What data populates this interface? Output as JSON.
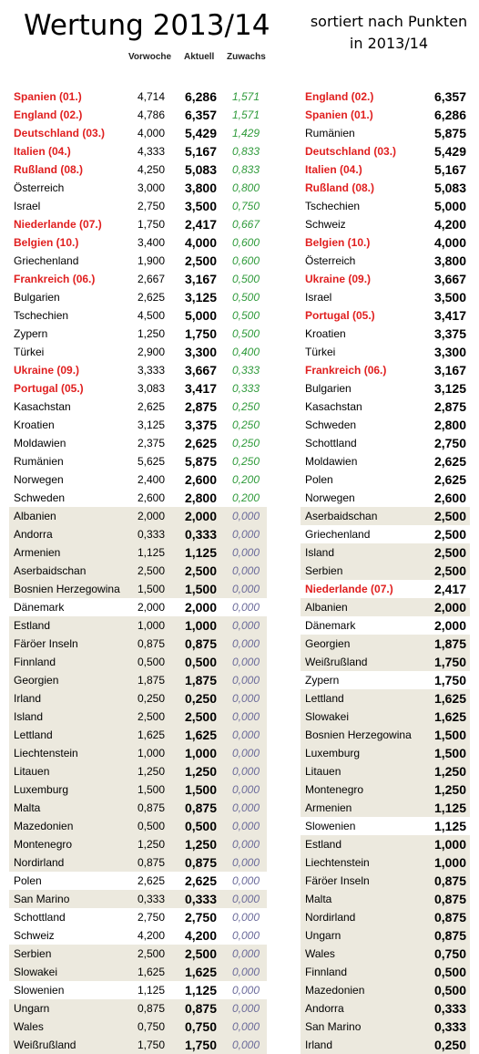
{
  "title": "Wertung 2013/14",
  "subtitle": "sortiert nach Punkten in 2013/14",
  "headers": {
    "prev": "Vorwoche",
    "curr": "Aktuell",
    "grow": "Zuwachs"
  },
  "left_rows": [
    {
      "name": "Spanien (01.)",
      "prev": "4,714",
      "curr": "6,286",
      "grow": "1,571",
      "red": true,
      "shade": false
    },
    {
      "name": "England (02.)",
      "prev": "4,786",
      "curr": "6,357",
      "grow": "1,571",
      "red": true,
      "shade": false
    },
    {
      "name": "Deutschland (03.)",
      "prev": "4,000",
      "curr": "5,429",
      "grow": "1,429",
      "red": true,
      "shade": false
    },
    {
      "name": "Italien (04.)",
      "prev": "4,333",
      "curr": "5,167",
      "grow": "0,833",
      "red": true,
      "shade": false
    },
    {
      "name": "Rußland (08.)",
      "prev": "4,250",
      "curr": "5,083",
      "grow": "0,833",
      "red": true,
      "shade": false
    },
    {
      "name": "Österreich",
      "prev": "3,000",
      "curr": "3,800",
      "grow": "0,800",
      "red": false,
      "shade": false
    },
    {
      "name": "Israel",
      "prev": "2,750",
      "curr": "3,500",
      "grow": "0,750",
      "red": false,
      "shade": false
    },
    {
      "name": "Niederlande (07.)",
      "prev": "1,750",
      "curr": "2,417",
      "grow": "0,667",
      "red": true,
      "shade": false
    },
    {
      "name": "Belgien (10.)",
      "prev": "3,400",
      "curr": "4,000",
      "grow": "0,600",
      "red": true,
      "shade": false
    },
    {
      "name": "Griechenland",
      "prev": "1,900",
      "curr": "2,500",
      "grow": "0,600",
      "red": false,
      "shade": false
    },
    {
      "name": "Frankreich (06.)",
      "prev": "2,667",
      "curr": "3,167",
      "grow": "0,500",
      "red": true,
      "shade": false
    },
    {
      "name": "Bulgarien",
      "prev": "2,625",
      "curr": "3,125",
      "grow": "0,500",
      "red": false,
      "shade": false
    },
    {
      "name": "Tschechien",
      "prev": "4,500",
      "curr": "5,000",
      "grow": "0,500",
      "red": false,
      "shade": false
    },
    {
      "name": "Zypern",
      "prev": "1,250",
      "curr": "1,750",
      "grow": "0,500",
      "red": false,
      "shade": false
    },
    {
      "name": "Türkei",
      "prev": "2,900",
      "curr": "3,300",
      "grow": "0,400",
      "red": false,
      "shade": false
    },
    {
      "name": "Ukraine (09.)",
      "prev": "3,333",
      "curr": "3,667",
      "grow": "0,333",
      "red": true,
      "shade": false
    },
    {
      "name": "Portugal (05.)",
      "prev": "3,083",
      "curr": "3,417",
      "grow": "0,333",
      "red": true,
      "shade": false
    },
    {
      "name": "Kasachstan",
      "prev": "2,625",
      "curr": "2,875",
      "grow": "0,250",
      "red": false,
      "shade": false
    },
    {
      "name": "Kroatien",
      "prev": "3,125",
      "curr": "3,375",
      "grow": "0,250",
      "red": false,
      "shade": false
    },
    {
      "name": "Moldawien",
      "prev": "2,375",
      "curr": "2,625",
      "grow": "0,250",
      "red": false,
      "shade": false
    },
    {
      "name": "Rumänien",
      "prev": "5,625",
      "curr": "5,875",
      "grow": "0,250",
      "red": false,
      "shade": false
    },
    {
      "name": "Norwegen",
      "prev": "2,400",
      "curr": "2,600",
      "grow": "0,200",
      "red": false,
      "shade": false
    },
    {
      "name": "Schweden",
      "prev": "2,600",
      "curr": "2,800",
      "grow": "0,200",
      "red": false,
      "shade": false
    },
    {
      "name": "Albanien",
      "prev": "2,000",
      "curr": "2,000",
      "grow": "0,000",
      "red": false,
      "shade": true
    },
    {
      "name": "Andorra",
      "prev": "0,333",
      "curr": "0,333",
      "grow": "0,000",
      "red": false,
      "shade": true
    },
    {
      "name": "Armenien",
      "prev": "1,125",
      "curr": "1,125",
      "grow": "0,000",
      "red": false,
      "shade": true
    },
    {
      "name": "Aserbaidschan",
      "prev": "2,500",
      "curr": "2,500",
      "grow": "0,000",
      "red": false,
      "shade": true
    },
    {
      "name": "Bosnien Herzegowina",
      "prev": "1,500",
      "curr": "1,500",
      "grow": "0,000",
      "red": false,
      "shade": true
    },
    {
      "name": "Dänemark",
      "prev": "2,000",
      "curr": "2,000",
      "grow": "0,000",
      "red": false,
      "shade": false
    },
    {
      "name": "Estland",
      "prev": "1,000",
      "curr": "1,000",
      "grow": "0,000",
      "red": false,
      "shade": true
    },
    {
      "name": "Färöer Inseln",
      "prev": "0,875",
      "curr": "0,875",
      "grow": "0,000",
      "red": false,
      "shade": true
    },
    {
      "name": "Finnland",
      "prev": "0,500",
      "curr": "0,500",
      "grow": "0,000",
      "red": false,
      "shade": true
    },
    {
      "name": "Georgien",
      "prev": "1,875",
      "curr": "1,875",
      "grow": "0,000",
      "red": false,
      "shade": true
    },
    {
      "name": "Irland",
      "prev": "0,250",
      "curr": "0,250",
      "grow": "0,000",
      "red": false,
      "shade": true
    },
    {
      "name": "Island",
      "prev": "2,500",
      "curr": "2,500",
      "grow": "0,000",
      "red": false,
      "shade": true
    },
    {
      "name": "Lettland",
      "prev": "1,625",
      "curr": "1,625",
      "grow": "0,000",
      "red": false,
      "shade": true
    },
    {
      "name": "Liechtenstein",
      "prev": "1,000",
      "curr": "1,000",
      "grow": "0,000",
      "red": false,
      "shade": true
    },
    {
      "name": "Litauen",
      "prev": "1,250",
      "curr": "1,250",
      "grow": "0,000",
      "red": false,
      "shade": true
    },
    {
      "name": "Luxemburg",
      "prev": "1,500",
      "curr": "1,500",
      "grow": "0,000",
      "red": false,
      "shade": true
    },
    {
      "name": "Malta",
      "prev": "0,875",
      "curr": "0,875",
      "grow": "0,000",
      "red": false,
      "shade": true
    },
    {
      "name": "Mazedonien",
      "prev": "0,500",
      "curr": "0,500",
      "grow": "0,000",
      "red": false,
      "shade": true
    },
    {
      "name": "Montenegro",
      "prev": "1,250",
      "curr": "1,250",
      "grow": "0,000",
      "red": false,
      "shade": true
    },
    {
      "name": "Nordirland",
      "prev": "0,875",
      "curr": "0,875",
      "grow": "0,000",
      "red": false,
      "shade": true
    },
    {
      "name": "Polen",
      "prev": "2,625",
      "curr": "2,625",
      "grow": "0,000",
      "red": false,
      "shade": false
    },
    {
      "name": "San Marino",
      "prev": "0,333",
      "curr": "0,333",
      "grow": "0,000",
      "red": false,
      "shade": true
    },
    {
      "name": "Schottland",
      "prev": "2,750",
      "curr": "2,750",
      "grow": "0,000",
      "red": false,
      "shade": false
    },
    {
      "name": "Schweiz",
      "prev": "4,200",
      "curr": "4,200",
      "grow": "0,000",
      "red": false,
      "shade": false
    },
    {
      "name": "Serbien",
      "prev": "2,500",
      "curr": "2,500",
      "grow": "0,000",
      "red": false,
      "shade": true
    },
    {
      "name": "Slowakei",
      "prev": "1,625",
      "curr": "1,625",
      "grow": "0,000",
      "red": false,
      "shade": true
    },
    {
      "name": "Slowenien",
      "prev": "1,125",
      "curr": "1,125",
      "grow": "0,000",
      "red": false,
      "shade": false
    },
    {
      "name": "Ungarn",
      "prev": "0,875",
      "curr": "0,875",
      "grow": "0,000",
      "red": false,
      "shade": true
    },
    {
      "name": "Wales",
      "prev": "0,750",
      "curr": "0,750",
      "grow": "0,000",
      "red": false,
      "shade": true
    },
    {
      "name": "Weißrußland",
      "prev": "1,750",
      "curr": "1,750",
      "grow": "0,000",
      "red": false,
      "shade": true
    }
  ],
  "right_rows": [
    {
      "name": "England (02.)",
      "curr": "6,357",
      "red": true,
      "shade": false
    },
    {
      "name": "Spanien (01.)",
      "curr": "6,286",
      "red": true,
      "shade": false
    },
    {
      "name": "Rumänien",
      "curr": "5,875",
      "red": false,
      "shade": false
    },
    {
      "name": "Deutschland (03.)",
      "curr": "5,429",
      "red": true,
      "shade": false
    },
    {
      "name": "Italien (04.)",
      "curr": "5,167",
      "red": true,
      "shade": false
    },
    {
      "name": "Rußland (08.)",
      "curr": "5,083",
      "red": true,
      "shade": false
    },
    {
      "name": "Tschechien",
      "curr": "5,000",
      "red": false,
      "shade": false
    },
    {
      "name": "Schweiz",
      "curr": "4,200",
      "red": false,
      "shade": false
    },
    {
      "name": "Belgien (10.)",
      "curr": "4,000",
      "red": true,
      "shade": false
    },
    {
      "name": "Österreich",
      "curr": "3,800",
      "red": false,
      "shade": false
    },
    {
      "name": "Ukraine (09.)",
      "curr": "3,667",
      "red": true,
      "shade": false
    },
    {
      "name": "Israel",
      "curr": "3,500",
      "red": false,
      "shade": false
    },
    {
      "name": "Portugal (05.)",
      "curr": "3,417",
      "red": true,
      "shade": false
    },
    {
      "name": "Kroatien",
      "curr": "3,375",
      "red": false,
      "shade": false
    },
    {
      "name": "Türkei",
      "curr": "3,300",
      "red": false,
      "shade": false
    },
    {
      "name": "Frankreich (06.)",
      "curr": "3,167",
      "red": true,
      "shade": false
    },
    {
      "name": "Bulgarien",
      "curr": "3,125",
      "red": false,
      "shade": false
    },
    {
      "name": "Kasachstan",
      "curr": "2,875",
      "red": false,
      "shade": false
    },
    {
      "name": "Schweden",
      "curr": "2,800",
      "red": false,
      "shade": false
    },
    {
      "name": "Schottland",
      "curr": "2,750",
      "red": false,
      "shade": false
    },
    {
      "name": "Moldawien",
      "curr": "2,625",
      "red": false,
      "shade": false
    },
    {
      "name": "Polen",
      "curr": "2,625",
      "red": false,
      "shade": false
    },
    {
      "name": "Norwegen",
      "curr": "2,600",
      "red": false,
      "shade": false
    },
    {
      "name": "Aserbaidschan",
      "curr": "2,500",
      "red": false,
      "shade": true
    },
    {
      "name": "Griechenland",
      "curr": "2,500",
      "red": false,
      "shade": false
    },
    {
      "name": "Island",
      "curr": "2,500",
      "red": false,
      "shade": true
    },
    {
      "name": "Serbien",
      "curr": "2,500",
      "red": false,
      "shade": true
    },
    {
      "name": "Niederlande (07.)",
      "curr": "2,417",
      "red": true,
      "shade": false
    },
    {
      "name": "Albanien",
      "curr": "2,000",
      "red": false,
      "shade": true
    },
    {
      "name": "Dänemark",
      "curr": "2,000",
      "red": false,
      "shade": false
    },
    {
      "name": "Georgien",
      "curr": "1,875",
      "red": false,
      "shade": true
    },
    {
      "name": "Weißrußland",
      "curr": "1,750",
      "red": false,
      "shade": true
    },
    {
      "name": "Zypern",
      "curr": "1,750",
      "red": false,
      "shade": false
    },
    {
      "name": "Lettland",
      "curr": "1,625",
      "red": false,
      "shade": true
    },
    {
      "name": "Slowakei",
      "curr": "1,625",
      "red": false,
      "shade": true
    },
    {
      "name": "Bosnien Herzegowina",
      "curr": "1,500",
      "red": false,
      "shade": true
    },
    {
      "name": "Luxemburg",
      "curr": "1,500",
      "red": false,
      "shade": true
    },
    {
      "name": "Litauen",
      "curr": "1,250",
      "red": false,
      "shade": true
    },
    {
      "name": "Montenegro",
      "curr": "1,250",
      "red": false,
      "shade": true
    },
    {
      "name": "Armenien",
      "curr": "1,125",
      "red": false,
      "shade": true
    },
    {
      "name": "Slowenien",
      "curr": "1,125",
      "red": false,
      "shade": false
    },
    {
      "name": "Estland",
      "curr": "1,000",
      "red": false,
      "shade": true
    },
    {
      "name": "Liechtenstein",
      "curr": "1,000",
      "red": false,
      "shade": true
    },
    {
      "name": "Färöer Inseln",
      "curr": "0,875",
      "red": false,
      "shade": true
    },
    {
      "name": "Malta",
      "curr": "0,875",
      "red": false,
      "shade": true
    },
    {
      "name": "Nordirland",
      "curr": "0,875",
      "red": false,
      "shade": true
    },
    {
      "name": "Ungarn",
      "curr": "0,875",
      "red": false,
      "shade": true
    },
    {
      "name": "Wales",
      "curr": "0,750",
      "red": false,
      "shade": true
    },
    {
      "name": "Finnland",
      "curr": "0,500",
      "red": false,
      "shade": true
    },
    {
      "name": "Mazedonien",
      "curr": "0,500",
      "red": false,
      "shade": true
    },
    {
      "name": "Andorra",
      "curr": "0,333",
      "red": false,
      "shade": true
    },
    {
      "name": "San Marino",
      "curr": "0,333",
      "red": false,
      "shade": true
    },
    {
      "name": "Irland",
      "curr": "0,250",
      "red": false,
      "shade": true
    }
  ],
  "colors": {
    "highlight_red": "#e01f1f",
    "growth_green": "#2e9a3a",
    "zero_growth": "#6a6a9a",
    "shade": "#ece9de"
  }
}
